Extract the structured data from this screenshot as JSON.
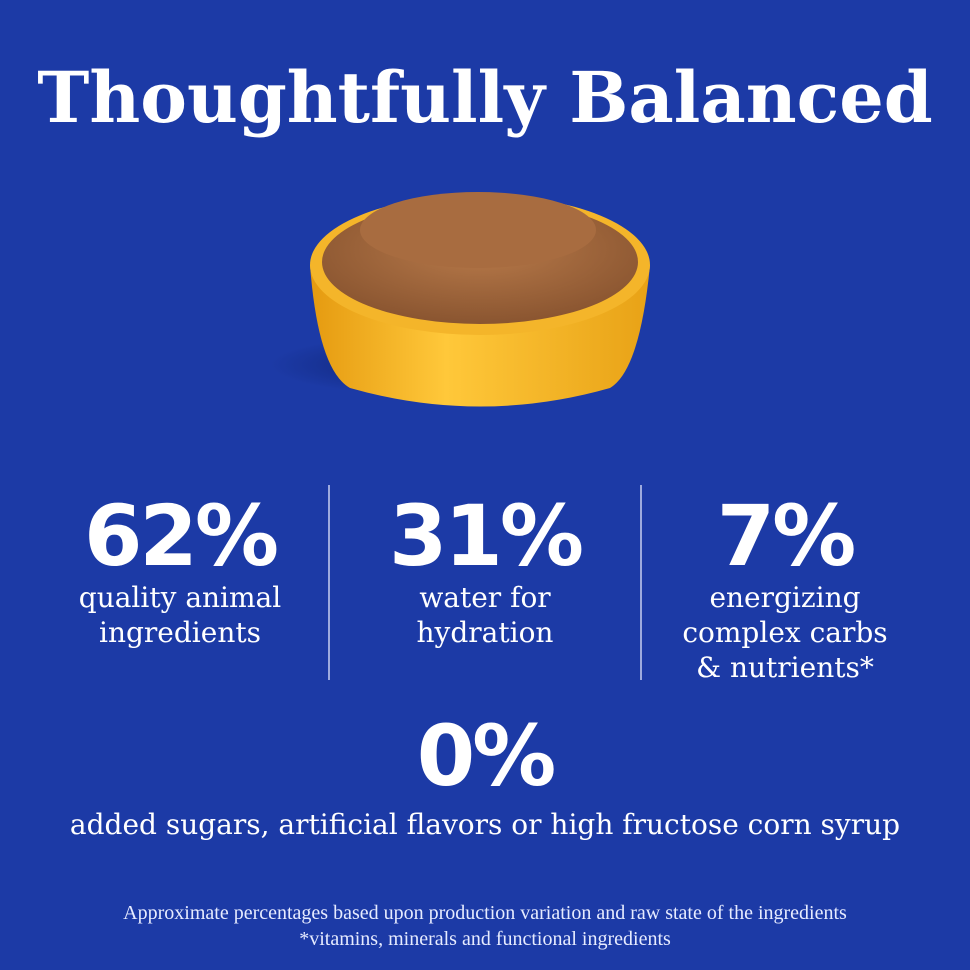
{
  "header": {
    "title": "Thoughtfully Balanced"
  },
  "stats": [
    {
      "value": "62%",
      "label": [
        "quality animal",
        "ingredients"
      ]
    },
    {
      "value": "31%",
      "label": [
        "water for",
        "hydration"
      ]
    },
    {
      "value": "7%",
      "label": [
        "energizing",
        "complex carbs",
        "& nutrients*"
      ]
    }
  ],
  "highlight": {
    "value": "0%",
    "label": "added sugars, artificial flavors or high fructose corn syrup"
  },
  "footnotes": [
    "Approximate percentages based upon production variation and raw state of the ingredients",
    "*vitamins, minerals and functional ingredients"
  ]
}
